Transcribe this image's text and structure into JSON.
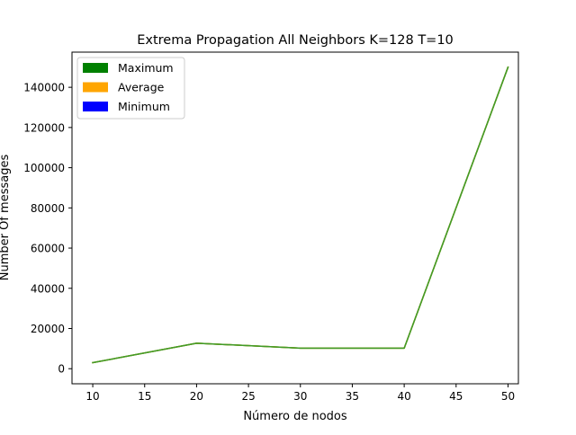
{
  "chart_data": {
    "type": "line",
    "title": "Extrema Propagation All Neighbors K=128 T=10",
    "xlabel": "Número de nodos",
    "ylabel": "Number Of messages",
    "x": [
      10,
      20,
      30,
      40,
      50
    ],
    "xticks": [
      "10",
      "15",
      "20",
      "25",
      "30",
      "35",
      "40",
      "45",
      "50"
    ],
    "xtick_values": [
      10,
      15,
      20,
      25,
      30,
      35,
      40,
      45,
      50
    ],
    "yticks": [
      "0",
      "20000",
      "40000",
      "60000",
      "80000",
      "100000",
      "120000",
      "140000"
    ],
    "ytick_values": [
      0,
      20000,
      40000,
      60000,
      80000,
      100000,
      120000,
      140000
    ],
    "xlim": [
      8,
      51
    ],
    "ylim": [
      -7500,
      157500
    ],
    "legend_position": "upper-left",
    "series": [
      {
        "name": "Maximum",
        "color": "#008000",
        "values": [
          3000,
          12700,
          10200,
          10200,
          150000
        ]
      },
      {
        "name": "Average",
        "color": "#ffa500",
        "values": [
          3000,
          12700,
          10200,
          10200,
          150000
        ]
      },
      {
        "name": "Minimum",
        "color": "#0000ff",
        "values": [
          3000,
          12700,
          10200,
          10200,
          150000
        ]
      }
    ],
    "drawn_line_color": "#3f9b2a",
    "grid": false
  }
}
